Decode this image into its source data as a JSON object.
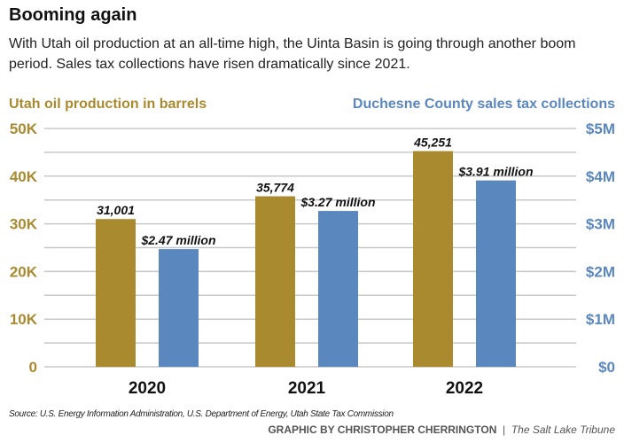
{
  "title": "Booming again",
  "subtitle": "With Utah oil production at an all-time high, the Uinta Basin is going through another boom period. Sales tax collections have risen dramatically since 2021.",
  "source": "Source: U.S. Energy Information Administration, U.S. Department of Energy, Utah State Tax Commission",
  "credit": "GRAPHIC BY CHRISTOPHER CHERRINGTON",
  "publisher": "The Salt Lake Tribune",
  "colors": {
    "oil": "#a98a2f",
    "tax": "#5b87bf",
    "grid": "#c8c8c8"
  },
  "chart_data": {
    "type": "bar",
    "categories": [
      "2020",
      "2021",
      "2022"
    ],
    "series": [
      {
        "name": "Utah oil production in barrels",
        "axis": "left",
        "values": [
          31001,
          35774,
          45251
        ],
        "labels": [
          "31,001",
          "35,774",
          "45,251"
        ]
      },
      {
        "name": "Duchesne County sales tax collections",
        "axis": "right",
        "values": [
          2.47,
          3.27,
          3.91
        ],
        "labels": [
          "$2.47 million",
          "$3.27 million",
          "$3.91 million"
        ]
      }
    ],
    "left_axis": {
      "range": [
        0,
        50000
      ],
      "ticks": [
        0,
        10000,
        20000,
        30000,
        40000,
        50000
      ],
      "tick_labels": [
        "0",
        "10K",
        "20K",
        "30K",
        "40K",
        "50K"
      ]
    },
    "right_axis": {
      "range": [
        0,
        5
      ],
      "ticks": [
        0,
        1,
        2,
        3,
        4,
        5
      ],
      "tick_labels": [
        "$0",
        "$1M",
        "$2M",
        "$3M",
        "$4M",
        "$5M"
      ]
    },
    "grid": true,
    "gridline_step_left": 5000
  }
}
